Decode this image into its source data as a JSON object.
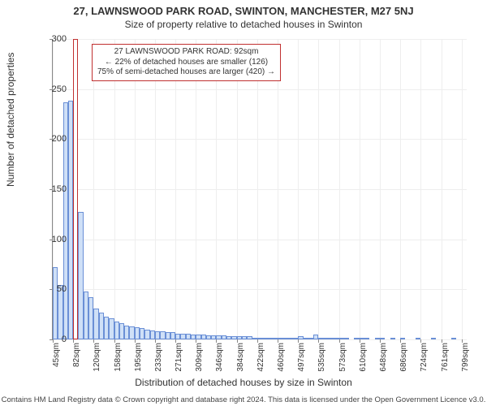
{
  "title": "27, LAWNSWOOD PARK ROAD, SWINTON, MANCHESTER, M27 5NJ",
  "subtitle": "Size of property relative to detached houses in Swinton",
  "ylabel": "Number of detached properties",
  "xlabel": "Distribution of detached houses by size in Swinton",
  "footer": "Contains HM Land Registry data © Crown copyright and database right 2024. This data is licensed under the Open Government Licence v3.0.",
  "annotation": {
    "line1": "27 LAWNSWOOD PARK ROAD: 92sqm",
    "line2": "← 22% of detached houses are smaller (126)",
    "line3": "75% of semi-detached houses are larger (420) →"
  },
  "chart": {
    "type": "bar",
    "ylim": [
      0,
      300
    ],
    "yticks": [
      0,
      50,
      100,
      150,
      200,
      250,
      300
    ],
    "xticks": [
      "45sqm",
      "82sqm",
      "120sqm",
      "158sqm",
      "195sqm",
      "233sqm",
      "271sqm",
      "309sqm",
      "346sqm",
      "384sqm",
      "422sqm",
      "460sqm",
      "497sqm",
      "535sqm",
      "573sqm",
      "610sqm",
      "648sqm",
      "686sqm",
      "724sqm",
      "761sqm",
      "799sqm"
    ],
    "xtick_step": 4,
    "highlight_index": 4,
    "highlight_color": "#c03030",
    "bar_fill": "#cfe0f7",
    "bar_stroke": "#6a8fd6",
    "background": "#ffffff",
    "grid_color": "#eeeeee",
    "values": [
      72,
      54,
      237,
      238,
      0,
      127,
      48,
      42,
      31,
      27,
      23,
      21,
      18,
      16,
      14,
      13,
      12,
      11,
      10,
      9,
      8,
      8,
      7,
      7,
      6,
      6,
      6,
      5,
      5,
      5,
      4,
      4,
      4,
      4,
      3,
      3,
      3,
      3,
      3,
      2,
      2,
      2,
      2,
      2,
      2,
      2,
      1,
      1,
      3,
      1,
      1,
      5,
      1,
      1,
      1,
      1,
      1,
      1,
      0,
      1,
      1,
      2,
      0,
      1,
      1,
      0,
      1,
      0,
      1,
      0,
      0,
      1,
      0,
      0,
      1,
      0,
      0,
      0,
      1,
      0,
      0
    ]
  }
}
